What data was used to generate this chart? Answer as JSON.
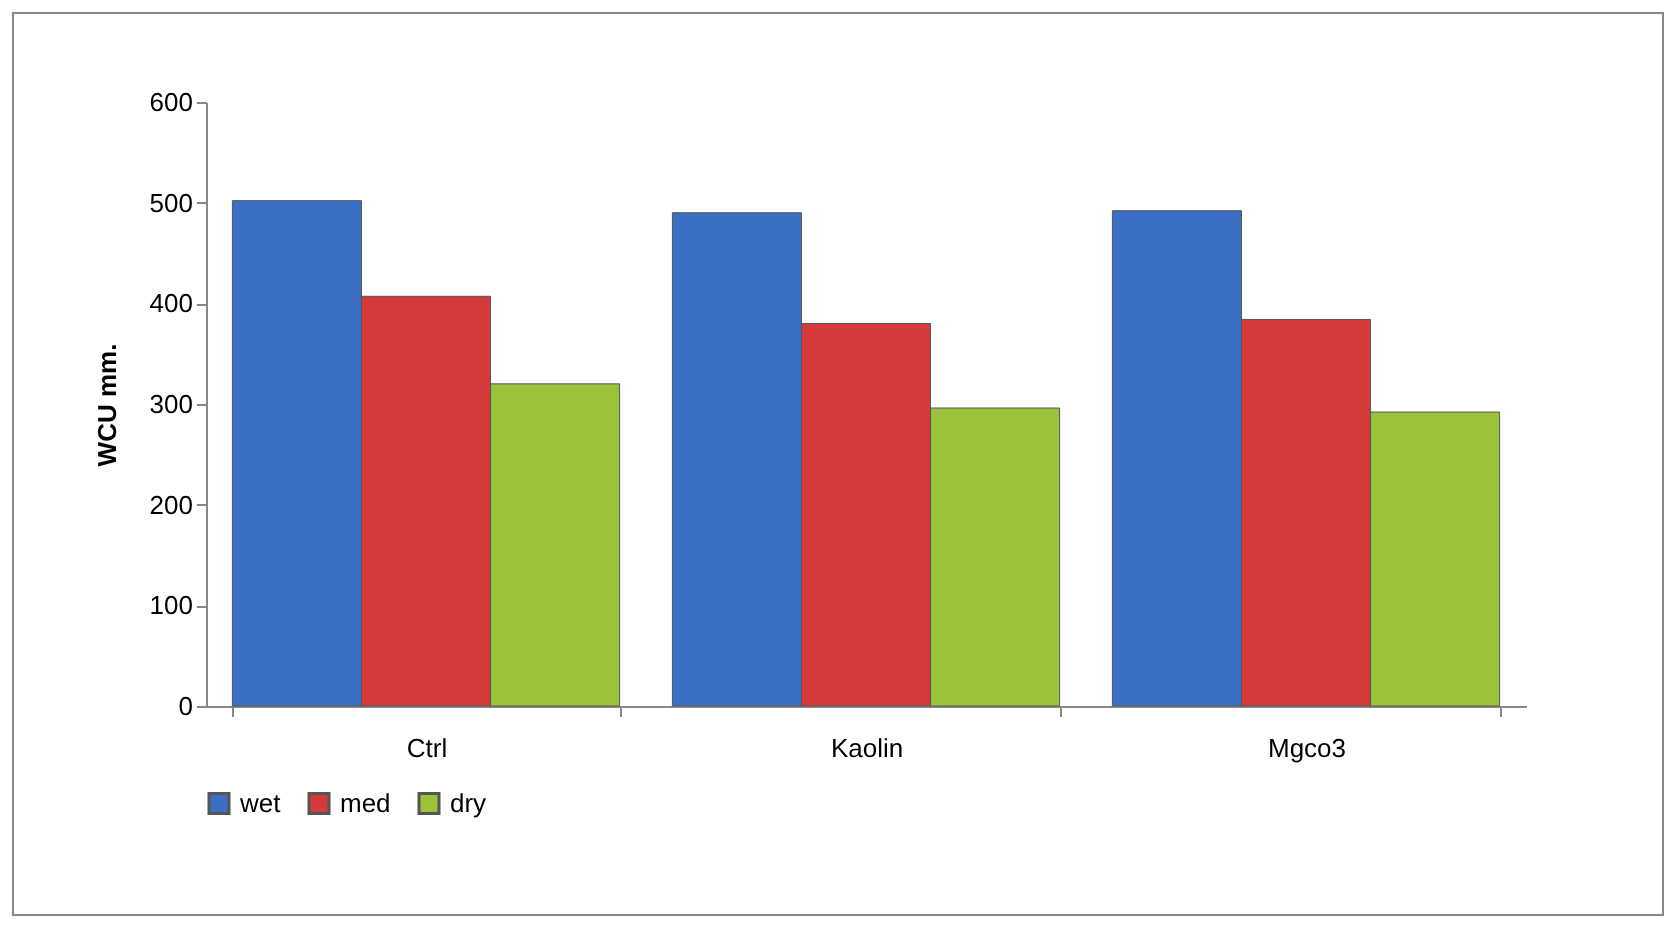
{
  "chart_data": {
    "type": "bar",
    "ylabel": "WCU mm.",
    "categories": [
      "Ctrl",
      "Kaolin",
      "Mgco3"
    ],
    "series": [
      {
        "name": "wet",
        "color": "#3a6fc4",
        "values": [
          502,
          490,
          492
        ]
      },
      {
        "name": "med",
        "color": "#d43a3a",
        "values": [
          407,
          380,
          384
        ]
      },
      {
        "name": "dry",
        "color": "#9bc23a",
        "values": [
          320,
          296,
          292
        ]
      }
    ],
    "ylim": [
      0,
      600
    ],
    "yticks": [
      0,
      100,
      200,
      300,
      400,
      500,
      600
    ],
    "grid": false,
    "legend": "bottom"
  }
}
